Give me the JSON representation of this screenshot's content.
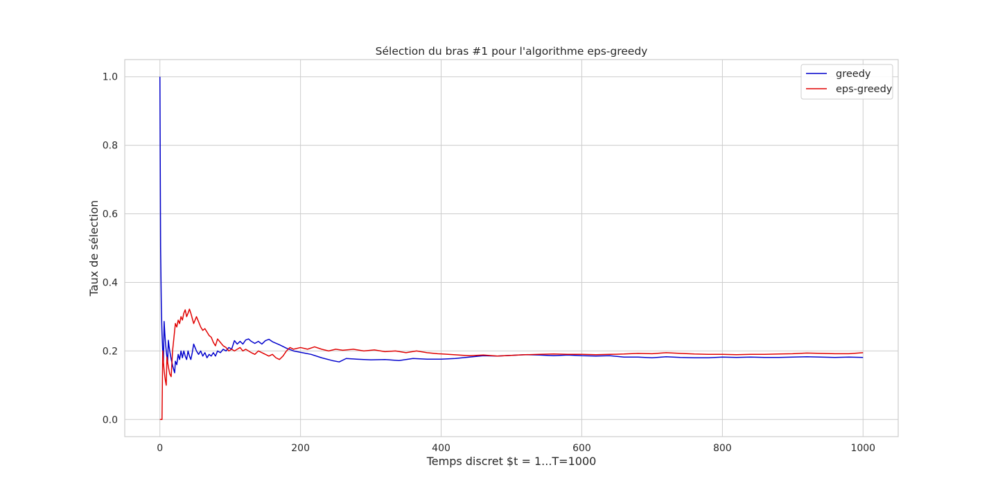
{
  "chart_data": {
    "type": "line",
    "title": "Sélection du bras #1 pour l'algorithme eps-greedy",
    "xlabel": "Temps discret $t = 1...T=1000",
    "ylabel": "Taux de sélection",
    "xlim": [
      -50,
      1050
    ],
    "ylim": [
      -0.05,
      1.05
    ],
    "x_ticks": [
      0,
      200,
      400,
      600,
      800,
      1000
    ],
    "y_ticks": [
      0.0,
      0.2,
      0.4,
      0.6,
      0.8,
      1.0
    ],
    "x_tick_labels": [
      "0",
      "200",
      "400",
      "600",
      "800",
      "1000"
    ],
    "y_tick_labels": [
      "0.0",
      "0.2",
      "0.4",
      "0.6",
      "0.8",
      "1.0"
    ],
    "grid": true,
    "legend_position": "top-right",
    "series": [
      {
        "name": "greedy",
        "color": "#0000cc",
        "points": [
          [
            0,
            1.0
          ],
          [
            1,
            0.5
          ],
          [
            2,
            0.333
          ],
          [
            3,
            0.25
          ],
          [
            4,
            0.2
          ],
          [
            5,
            0.167
          ],
          [
            6,
            0.286
          ],
          [
            7,
            0.25
          ],
          [
            8,
            0.222
          ],
          [
            9,
            0.2
          ],
          [
            10,
            0.182
          ],
          [
            11,
            0.167
          ],
          [
            12,
            0.231
          ],
          [
            13,
            0.214
          ],
          [
            14,
            0.2
          ],
          [
            15,
            0.188
          ],
          [
            16,
            0.176
          ],
          [
            17,
            0.167
          ],
          [
            18,
            0.158
          ],
          [
            19,
            0.15
          ],
          [
            20,
            0.143
          ],
          [
            21,
            0.136
          ],
          [
            22,
            0.17
          ],
          [
            24,
            0.16
          ],
          [
            26,
            0.19
          ],
          [
            28,
            0.175
          ],
          [
            30,
            0.2
          ],
          [
            32,
            0.18
          ],
          [
            34,
            0.2
          ],
          [
            36,
            0.185
          ],
          [
            38,
            0.175
          ],
          [
            40,
            0.2
          ],
          [
            42,
            0.185
          ],
          [
            44,
            0.175
          ],
          [
            46,
            0.195
          ],
          [
            48,
            0.22
          ],
          [
            50,
            0.21
          ],
          [
            52,
            0.2
          ],
          [
            55,
            0.19
          ],
          [
            58,
            0.2
          ],
          [
            61,
            0.185
          ],
          [
            64,
            0.195
          ],
          [
            67,
            0.18
          ],
          [
            70,
            0.19
          ],
          [
            73,
            0.185
          ],
          [
            76,
            0.195
          ],
          [
            79,
            0.185
          ],
          [
            82,
            0.2
          ],
          [
            86,
            0.195
          ],
          [
            90,
            0.205
          ],
          [
            94,
            0.2
          ],
          [
            98,
            0.21
          ],
          [
            102,
            0.205
          ],
          [
            106,
            0.23
          ],
          [
            110,
            0.22
          ],
          [
            114,
            0.228
          ],
          [
            118,
            0.22
          ],
          [
            122,
            0.232
          ],
          [
            126,
            0.235
          ],
          [
            130,
            0.228
          ],
          [
            135,
            0.222
          ],
          [
            140,
            0.228
          ],
          [
            145,
            0.22
          ],
          [
            150,
            0.23
          ],
          [
            155,
            0.234
          ],
          [
            160,
            0.227
          ],
          [
            170,
            0.218
          ],
          [
            180,
            0.208
          ],
          [
            190,
            0.2
          ],
          [
            200,
            0.196
          ],
          [
            215,
            0.19
          ],
          [
            230,
            0.18
          ],
          [
            245,
            0.172
          ],
          [
            255,
            0.168
          ],
          [
            265,
            0.178
          ],
          [
            280,
            0.176
          ],
          [
            300,
            0.174
          ],
          [
            320,
            0.175
          ],
          [
            340,
            0.172
          ],
          [
            360,
            0.178
          ],
          [
            380,
            0.176
          ],
          [
            400,
            0.176
          ],
          [
            420,
            0.178
          ],
          [
            440,
            0.182
          ],
          [
            460,
            0.186
          ],
          [
            480,
            0.185
          ],
          [
            500,
            0.187
          ],
          [
            520,
            0.189
          ],
          [
            540,
            0.188
          ],
          [
            560,
            0.186
          ],
          [
            580,
            0.188
          ],
          [
            600,
            0.186
          ],
          [
            620,
            0.185
          ],
          [
            640,
            0.186
          ],
          [
            660,
            0.182
          ],
          [
            680,
            0.182
          ],
          [
            700,
            0.18
          ],
          [
            720,
            0.183
          ],
          [
            740,
            0.181
          ],
          [
            760,
            0.18
          ],
          [
            780,
            0.18
          ],
          [
            800,
            0.182
          ],
          [
            820,
            0.181
          ],
          [
            840,
            0.182
          ],
          [
            860,
            0.181
          ],
          [
            880,
            0.181
          ],
          [
            900,
            0.182
          ],
          [
            920,
            0.183
          ],
          [
            940,
            0.182
          ],
          [
            960,
            0.181
          ],
          [
            980,
            0.182
          ],
          [
            1000,
            0.181
          ]
        ]
      },
      {
        "name": "eps-greedy",
        "color": "#e00000",
        "points": [
          [
            0,
            0.0
          ],
          [
            1,
            0.0
          ],
          [
            2,
            0.0
          ],
          [
            3,
            0.0
          ],
          [
            4,
            0.2
          ],
          [
            5,
            0.167
          ],
          [
            6,
            0.143
          ],
          [
            7,
            0.125
          ],
          [
            8,
            0.111
          ],
          [
            9,
            0.1
          ],
          [
            10,
            0.182
          ],
          [
            12,
            0.154
          ],
          [
            14,
            0.133
          ],
          [
            16,
            0.125
          ],
          [
            18,
            0.2
          ],
          [
            20,
            0.24
          ],
          [
            22,
            0.28
          ],
          [
            24,
            0.27
          ],
          [
            26,
            0.29
          ],
          [
            28,
            0.28
          ],
          [
            30,
            0.3
          ],
          [
            32,
            0.29
          ],
          [
            34,
            0.31
          ],
          [
            36,
            0.32
          ],
          [
            38,
            0.3
          ],
          [
            40,
            0.31
          ],
          [
            42,
            0.322
          ],
          [
            44,
            0.31
          ],
          [
            46,
            0.295
          ],
          [
            48,
            0.28
          ],
          [
            50,
            0.29
          ],
          [
            52,
            0.3
          ],
          [
            55,
            0.285
          ],
          [
            58,
            0.27
          ],
          [
            61,
            0.26
          ],
          [
            64,
            0.265
          ],
          [
            67,
            0.255
          ],
          [
            70,
            0.245
          ],
          [
            73,
            0.24
          ],
          [
            76,
            0.225
          ],
          [
            79,
            0.215
          ],
          [
            82,
            0.235
          ],
          [
            86,
            0.225
          ],
          [
            90,
            0.215
          ],
          [
            94,
            0.21
          ],
          [
            98,
            0.2
          ],
          [
            102,
            0.205
          ],
          [
            106,
            0.2
          ],
          [
            110,
            0.205
          ],
          [
            114,
            0.21
          ],
          [
            118,
            0.2
          ],
          [
            122,
            0.205
          ],
          [
            126,
            0.2
          ],
          [
            130,
            0.195
          ],
          [
            135,
            0.19
          ],
          [
            140,
            0.2
          ],
          [
            145,
            0.195
          ],
          [
            150,
            0.19
          ],
          [
            155,
            0.185
          ],
          [
            160,
            0.19
          ],
          [
            165,
            0.18
          ],
          [
            170,
            0.175
          ],
          [
            175,
            0.185
          ],
          [
            180,
            0.2
          ],
          [
            185,
            0.21
          ],
          [
            190,
            0.205
          ],
          [
            200,
            0.21
          ],
          [
            210,
            0.205
          ],
          [
            220,
            0.212
          ],
          [
            230,
            0.205
          ],
          [
            240,
            0.2
          ],
          [
            250,
            0.205
          ],
          [
            260,
            0.202
          ],
          [
            275,
            0.205
          ],
          [
            290,
            0.2
          ],
          [
            305,
            0.203
          ],
          [
            320,
            0.198
          ],
          [
            335,
            0.2
          ],
          [
            350,
            0.195
          ],
          [
            365,
            0.2
          ],
          [
            380,
            0.195
          ],
          [
            395,
            0.192
          ],
          [
            410,
            0.19
          ],
          [
            425,
            0.188
          ],
          [
            440,
            0.186
          ],
          [
            460,
            0.188
          ],
          [
            480,
            0.185
          ],
          [
            500,
            0.187
          ],
          [
            520,
            0.189
          ],
          [
            540,
            0.19
          ],
          [
            560,
            0.191
          ],
          [
            580,
            0.19
          ],
          [
            600,
            0.19
          ],
          [
            620,
            0.189
          ],
          [
            640,
            0.19
          ],
          [
            660,
            0.191
          ],
          [
            680,
            0.193
          ],
          [
            700,
            0.192
          ],
          [
            720,
            0.195
          ],
          [
            740,
            0.193
          ],
          [
            760,
            0.191
          ],
          [
            780,
            0.19
          ],
          [
            800,
            0.19
          ],
          [
            820,
            0.189
          ],
          [
            840,
            0.19
          ],
          [
            860,
            0.19
          ],
          [
            880,
            0.191
          ],
          [
            900,
            0.192
          ],
          [
            920,
            0.194
          ],
          [
            940,
            0.193
          ],
          [
            960,
            0.192
          ],
          [
            980,
            0.192
          ],
          [
            1000,
            0.195
          ]
        ]
      }
    ]
  }
}
